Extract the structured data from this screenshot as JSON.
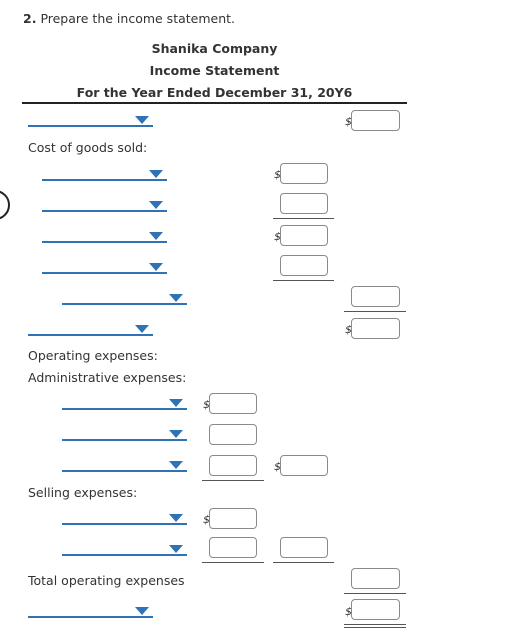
{
  "question": {
    "number": "2.",
    "text": "Prepare the income statement."
  },
  "header": {
    "company": "Shanika Company",
    "statement": "Income Statement",
    "period": "For the Year Ended December 31, 20Y6"
  },
  "labels": {
    "cogs": "Cost of goods sold:",
    "operating": "Operating expenses:",
    "admin": "Administrative expenses:",
    "selling": "Selling expenses:",
    "total_operating": "Total operating expenses"
  },
  "currency_symbol": "$",
  "accent_color": "#2f72b6"
}
